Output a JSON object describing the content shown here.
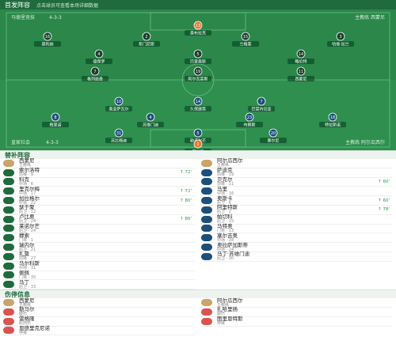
{
  "header": {
    "title": "首发阵容",
    "subtitle": "点击球员可查看本场详细数据"
  },
  "pitch": {
    "home": {
      "name": "马德里竞技",
      "formation": "4-3-3",
      "coach": "主教练 西蒙尼",
      "players": [
        {
          "number": "13",
          "name": "奥布拉克"
        },
        {
          "number": "16",
          "name": "莫利纳"
        },
        {
          "number": "2",
          "name": "希门尼斯"
        },
        {
          "number": "15",
          "name": "兰格莱"
        },
        {
          "number": "3",
          "name": "哈维·加兰"
        },
        {
          "number": "4",
          "name": "德保罗"
        },
        {
          "number": "5",
          "name": "巴里奥斯"
        },
        {
          "number": "14",
          "name": "略伦特"
        },
        {
          "number": "7",
          "name": "格列兹曼"
        },
        {
          "number": "19",
          "name": "阿尔瓦雷斯"
        },
        {
          "number": "11",
          "name": "西蒙尼"
        }
      ]
    },
    "away": {
      "name": "皇家社会",
      "formation": "4-3-3",
      "coach": "主教练 阿尔瓜西尔",
      "players": [
        {
          "number": "10",
          "name": "奥亚萨瓦尔"
        },
        {
          "number": "14",
          "name": "久保建英"
        },
        {
          "number": "7",
          "name": "巴雷内切亚"
        },
        {
          "number": "8",
          "name": "梅里诺"
        },
        {
          "number": "4",
          "name": "苏维门迪"
        },
        {
          "number": "23",
          "name": "布赖斯"
        },
        {
          "number": "18",
          "name": "特拉斯诺"
        },
        {
          "number": "31",
          "name": "苏比梅迪"
        },
        {
          "number": "5",
          "name": "勒诺尔芒"
        },
        {
          "number": "20",
          "name": "蒂尔尼"
        },
        {
          "number": "1",
          "name": "雷米罗"
        }
      ]
    }
  },
  "substitutes": {
    "title": "替补阵容",
    "home": [
      {
        "name": "西蒙尼",
        "detail": "主教练"
      },
      {
        "name": "索尔洛特",
        "detail": "前锋 · 9",
        "sub_in": "↑ 72'"
      },
      {
        "name": "科克",
        "detail": "中场 · 6"
      },
      {
        "name": "里克尔梅",
        "detail": "中场 · 17",
        "sub_in": "↑ 72'"
      },
      {
        "name": "加拉格尔",
        "detail": "中场 · 22",
        "sub_in": "↑ 80'"
      },
      {
        "name": "瑟于聚",
        "detail": "后卫 · 12"
      },
      {
        "name": "卢比奥",
        "detail": "后卫 · 24",
        "sub_in": "↑ 86'"
      },
      {
        "name": "莱诺尔芒",
        "detail": "后卫 · 24"
      },
      {
        "name": "穆索",
        "detail": "门将 · 1"
      },
      {
        "name": "瑞内尔",
        "detail": "后卫 · 21"
      },
      {
        "name": "扎莫",
        "detail": "前锋 · 27"
      },
      {
        "name": "马尔科斯",
        "detail": "中场 · 31"
      },
      {
        "name": "佩佩",
        "detail": "门将 · 35"
      },
      {
        "name": "马丁",
        "detail": "后卫 · 33"
      }
    ],
    "away": [
      {
        "name": "阿尔瓜西尔",
        "detail": "主教练"
      },
      {
        "name": "萨迪克",
        "detail": "前锋 · 19"
      },
      {
        "name": "贝克尔",
        "detail": "前锋 · 11",
        "sub_in": "↑ 60'"
      },
      {
        "name": "马里",
        "detail": "中场 · 16"
      },
      {
        "name": "奥斯卡",
        "detail": "后卫 · 6",
        "sub_in": "↑ 60'"
      },
      {
        "name": "阿里特斯",
        "detail": "后卫 · 2",
        "sub_in": "↑ 78'"
      },
      {
        "name": "帕切科",
        "detail": "后卫 · 15"
      },
      {
        "name": "马特奥",
        "detail": "门将 · 13"
      },
      {
        "name": "塞尔吉奥",
        "detail": "中场 · 28"
      },
      {
        "name": "奥拉萨加斯蒂",
        "detail": "中场 · 24"
      },
      {
        "name": "马丁·苏维门迪",
        "detail": "后卫 · 30"
      }
    ]
  },
  "injuries": {
    "title": "伤停信息",
    "home": [
      {
        "name": "西蒙尼",
        "detail": "主教练"
      },
      {
        "name": "勒马尔",
        "detail": "膝伤"
      },
      {
        "name": "雷格隆",
        "detail": "肌肉伤"
      },
      {
        "name": "恩德里克尼诺",
        "detail": "停赛"
      }
    ],
    "away": [
      {
        "name": "阿尔瓜西尔",
        "detail": "主教练"
      },
      {
        "name": "扎哈里扬",
        "detail": "腿伤"
      },
      {
        "name": "图里恩特斯",
        "detail": "停赛"
      }
    ]
  }
}
